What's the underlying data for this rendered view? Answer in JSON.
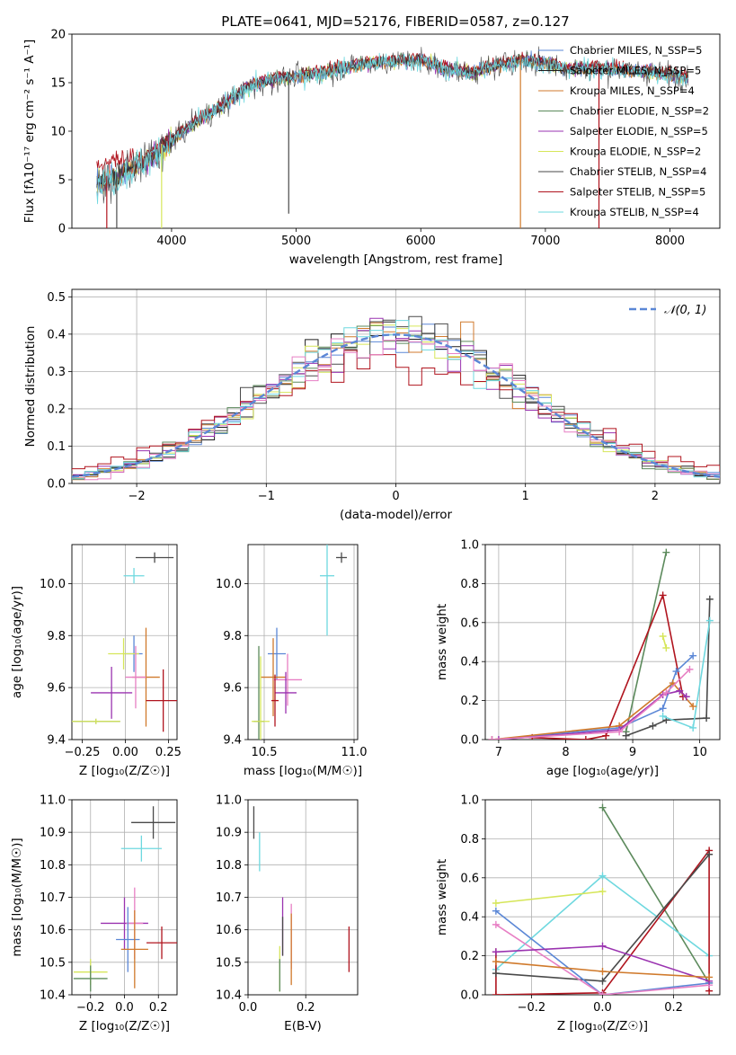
{
  "page_title": "PLATE=0641, MJD=52176, FIBERID=0587, z=0.127",
  "colors": {
    "Chabrier MILES": "#5b87d6",
    "Salpeter MILES": "#1f1f1f",
    "Kroupa MILES": "#d07a2c",
    "Chabrier ELODIE": "#5c8a5c",
    "Salpeter ELODIE": "#9a33b0",
    "Kroupa ELODIE": "#d6e65a",
    "Chabrier STELIB": "#4a4a4a",
    "Salpeter STELIB": "#b0141e",
    "Kroupa STELIB": "#6ed8df",
    "Extra pink": "#e77fc4"
  },
  "chart_data": [
    {
      "id": "spectrum",
      "type": "line",
      "title": "PLATE=0641, MJD=52176, FIBERID=0587, z=0.127",
      "xlabel": "wavelength [Angstrom, rest frame]",
      "ylabel": "Flux [fλ10⁻¹⁷ erg cm⁻² s⁻¹ A⁻¹]",
      "xlim": [
        3200,
        8400
      ],
      "ylim": [
        0,
        20
      ],
      "xticks": [
        4000,
        5000,
        6000,
        7000,
        8000
      ],
      "yticks": [
        0,
        5,
        10,
        15,
        20
      ],
      "legend_position": "top-right",
      "series": [
        {
          "name": "Chabrier MILES, N_SSP=5",
          "color_key": "Chabrier MILES"
        },
        {
          "name": "Salpeter MILES, N_SSP=5",
          "color_key": "Salpeter MILES"
        },
        {
          "name": "Kroupa MILES, N_SSP=4",
          "color_key": "Kroupa MILES"
        },
        {
          "name": "Chabrier ELODIE, N_SSP=2",
          "color_key": "Chabrier ELODIE"
        },
        {
          "name": "Salpeter ELODIE, N_SSP=5",
          "color_key": "Salpeter ELODIE"
        },
        {
          "name": "Kroupa ELODIE, N_SSP=2",
          "color_key": "Kroupa ELODIE"
        },
        {
          "name": "Chabrier STELIB, N_SSP=4",
          "color_key": "Chabrier STELIB"
        },
        {
          "name": "Salpeter STELIB, N_SSP=5",
          "color_key": "Salpeter STELIB"
        },
        {
          "name": "Kroupa STELIB, N_SSP=4",
          "color_key": "Kroupa STELIB"
        }
      ],
      "continuum": {
        "x": [
          3400,
          3600,
          3800,
          4000,
          4200,
          4400,
          4600,
          4800,
          5000,
          5200,
          5400,
          5600,
          5800,
          6000,
          6200,
          6400,
          6600,
          6800,
          7000,
          7200,
          7400,
          7600,
          7800,
          8000,
          8150
        ],
        "y": [
          4.5,
          5.5,
          7.0,
          9.0,
          11.0,
          12.5,
          14.5,
          15.3,
          15.6,
          16.0,
          16.6,
          17.0,
          17.2,
          17.3,
          16.4,
          16.0,
          16.7,
          17.3,
          17.0,
          16.4,
          16.5,
          16.3,
          16.1,
          15.8,
          15.6
        ]
      },
      "spikes": [
        {
          "x": 3480,
          "y": 0,
          "color_key": "Salpeter STELIB"
        },
        {
          "x": 3560,
          "y": 0,
          "color_key": "Chabrier STELIB"
        },
        {
          "x": 3920,
          "y": 0,
          "color_key": "Kroupa ELODIE"
        },
        {
          "x": 4940,
          "y": 1.5,
          "color_key": "Chabrier STELIB"
        },
        {
          "x": 6800,
          "y": 0,
          "color_key": "Kroupa MILES"
        },
        {
          "x": 7430,
          "y": 0,
          "color_key": "Salpeter STELIB"
        }
      ]
    },
    {
      "id": "residuals",
      "type": "line",
      "xlabel": "(data-model)/error",
      "ylabel": "Normed distribution",
      "xlim": [
        -2.5,
        2.5
      ],
      "ylim": [
        0,
        0.52
      ],
      "xticks": [
        -2,
        -1,
        0,
        1,
        2
      ],
      "xtick_labels": [
        "−2",
        "−1",
        "0",
        "1",
        "2"
      ],
      "yticks": [
        0.0,
        0.1,
        0.2,
        0.3,
        0.4,
        0.5
      ],
      "grid": true,
      "legend": "𝒩(0, 1)",
      "legend_position": "top-right"
    },
    {
      "id": "age_vs_Z",
      "type": "scatter",
      "xlabel": "Z [log₁₀(Z/Z☉)]",
      "ylabel": "age  [log₁₀(age/yr)]",
      "xlim": [
        -0.31,
        0.3
      ],
      "ylim": [
        9.4,
        10.15
      ],
      "xticks": [
        -0.25,
        0.0,
        0.25
      ],
      "xtick_labels": [
        "−0.25",
        "0.00",
        "0.25"
      ],
      "yticks": [
        9.4,
        9.6,
        9.8,
        10.0
      ],
      "grid": true,
      "points": [
        {
          "x": 0.17,
          "xerr": 0.11,
          "y": 10.1,
          "yerr": 0.02,
          "color_key": "Chabrier STELIB"
        },
        {
          "x": 0.05,
          "xerr": 0.06,
          "y": 10.03,
          "yerr": 0.03,
          "color_key": "Kroupa STELIB"
        },
        {
          "x": 0.05,
          "xerr": 0.05,
          "y": 9.73,
          "yerr": 0.07,
          "color_key": "Chabrier MILES"
        },
        {
          "x": -0.01,
          "xerr": 0.09,
          "y": 9.73,
          "yerr": 0.06,
          "color_key": "Kroupa ELODIE"
        },
        {
          "x": 0.12,
          "xerr": 0.08,
          "y": 9.64,
          "yerr": 0.19,
          "color_key": "Kroupa MILES"
        },
        {
          "x": 0.06,
          "xerr": 0.06,
          "y": 9.64,
          "yerr": 0.12,
          "color_key": "Extra pink"
        },
        {
          "x": -0.08,
          "xerr": 0.12,
          "y": 9.58,
          "yerr": 0.1,
          "color_key": "Salpeter ELODIE"
        },
        {
          "x": 0.22,
          "xerr": 0.1,
          "y": 9.55,
          "yerr": 0.12,
          "color_key": "Salpeter STELIB"
        },
        {
          "x": -0.17,
          "xerr": 0.14,
          "y": 9.47,
          "yerr": 0.01,
          "color_key": "Chabrier ELODIE"
        },
        {
          "x": -0.17,
          "xerr": 0.14,
          "y": 9.47,
          "yerr": 0.01,
          "color_key": "Kroupa ELODIE"
        }
      ]
    },
    {
      "id": "age_vs_mass",
      "type": "scatter",
      "xlabel": "mass [log₁₀(M/M☉)]",
      "xlim": [
        10.41,
        11.02
      ],
      "ylim": [
        9.4,
        10.15
      ],
      "xticks": [
        10.5,
        11.0
      ],
      "xtick_labels": [
        "10.5",
        "11.0"
      ],
      "yticks": [
        9.4,
        9.6,
        9.8,
        10.0
      ],
      "grid": true,
      "points": [
        {
          "x": 10.93,
          "xerr": 0.03,
          "y": 10.1,
          "yerr": 0.02,
          "color_key": "Chabrier STELIB"
        },
        {
          "x": 10.85,
          "xerr": 0.04,
          "y": 10.03,
          "yerr": 0.23,
          "color_key": "Kroupa STELIB"
        },
        {
          "x": 10.57,
          "xerr": 0.05,
          "y": 9.73,
          "yerr": 0.1,
          "color_key": "Chabrier MILES"
        },
        {
          "x": 10.55,
          "xerr": 0.07,
          "y": 9.64,
          "yerr": 0.15,
          "color_key": "Kroupa MILES"
        },
        {
          "x": 10.63,
          "xerr": 0.08,
          "y": 9.63,
          "yerr": 0.1,
          "color_key": "Extra pink"
        },
        {
          "x": 10.62,
          "xerr": 0.06,
          "y": 9.58,
          "yerr": 0.08,
          "color_key": "Salpeter ELODIE"
        },
        {
          "x": 10.56,
          "xerr": 0.02,
          "y": 9.55,
          "yerr": 0.1,
          "color_key": "Salpeter STELIB"
        },
        {
          "x": 10.47,
          "xerr": 0.03,
          "y": 9.47,
          "yerr": 0.29,
          "color_key": "Chabrier ELODIE"
        },
        {
          "x": 10.48,
          "xerr": 0.05,
          "y": 9.47,
          "yerr": 0.25,
          "color_key": "Kroupa ELODIE"
        }
      ]
    },
    {
      "id": "weight_vs_age",
      "type": "line",
      "xlabel": "age  [log₁₀(age/yr)]",
      "ylabel": "mass weight",
      "xlim": [
        6.8,
        10.3
      ],
      "ylim": [
        0,
        1.0
      ],
      "xticks": [
        7,
        8,
        9,
        10
      ],
      "yticks": [
        0.0,
        0.2,
        0.4,
        0.6,
        0.8,
        1.0
      ],
      "grid": true,
      "series": [
        {
          "color_key": "Chabrier ELODIE",
          "x": [
            8.9,
            9.5
          ],
          "y": [
            0.04,
            0.96
          ]
        },
        {
          "color_key": "Salpeter STELIB",
          "x": [
            7.5,
            8.3,
            8.6,
            9.45,
            9.75
          ],
          "y": [
            0.01,
            0.0,
            0.02,
            0.74,
            0.22
          ]
        },
        {
          "color_key": "Chabrier STELIB",
          "x": [
            8.9,
            9.3,
            9.5,
            10.1,
            10.15
          ],
          "y": [
            0.02,
            0.07,
            0.1,
            0.11,
            0.72
          ]
        },
        {
          "color_key": "Kroupa STELIB",
          "x": [
            9.45,
            9.9,
            10.15
          ],
          "y": [
            0.12,
            0.06,
            0.61
          ]
        },
        {
          "color_key": "Kroupa ELODIE",
          "x": [
            9.45,
            9.5
          ],
          "y": [
            0.53,
            0.47
          ]
        },
        {
          "color_key": "Chabrier MILES",
          "x": [
            6.9,
            8.8,
            9.45,
            9.65,
            9.9
          ],
          "y": [
            0.0,
            0.06,
            0.16,
            0.35,
            0.43
          ]
        },
        {
          "color_key": "Kroupa MILES",
          "x": [
            6.9,
            8.8,
            9.6,
            9.9
          ],
          "y": [
            0.0,
            0.07,
            0.29,
            0.17
          ]
        },
        {
          "color_key": "Salpeter ELODIE",
          "x": [
            7.0,
            8.8,
            9.45,
            9.7,
            9.8
          ],
          "y": [
            0.0,
            0.05,
            0.23,
            0.25,
            0.22
          ]
        },
        {
          "color_key": "Extra pink",
          "x": [
            6.9,
            8.8,
            9.5,
            9.85
          ],
          "y": [
            0.0,
            0.04,
            0.24,
            0.36
          ]
        }
      ]
    },
    {
      "id": "mass_vs_Z",
      "type": "scatter",
      "xlabel": "Z [log₁₀(Z/Z☉)]",
      "ylabel": "mass [log₁₀(M/M☉)]",
      "xlim": [
        -0.31,
        0.31
      ],
      "ylim": [
        10.4,
        11.0
      ],
      "xticks": [
        -0.2,
        0.0,
        0.2
      ],
      "xtick_labels": [
        "−0.2",
        "0.0",
        "0.2"
      ],
      "yticks": [
        10.4,
        10.5,
        10.6,
        10.7,
        10.8,
        10.9,
        11.0
      ],
      "grid": true,
      "points": [
        {
          "x": 0.17,
          "xerr": 0.13,
          "y": 10.93,
          "yerr": 0.05,
          "color_key": "Chabrier STELIB"
        },
        {
          "x": 0.1,
          "xerr": 0.12,
          "y": 10.85,
          "yerr": 0.04,
          "color_key": "Kroupa STELIB"
        },
        {
          "x": 0.0,
          "xerr": 0.14,
          "y": 10.62,
          "yerr": 0.08,
          "color_key": "Salpeter ELODIE"
        },
        {
          "x": 0.06,
          "xerr": 0.05,
          "y": 10.62,
          "yerr": 0.11,
          "color_key": "Extra pink"
        },
        {
          "x": 0.02,
          "xerr": 0.07,
          "y": 10.57,
          "yerr": 0.1,
          "color_key": "Chabrier MILES"
        },
        {
          "x": 0.22,
          "xerr": 0.09,
          "y": 10.56,
          "yerr": 0.05,
          "color_key": "Salpeter STELIB"
        },
        {
          "x": 0.06,
          "xerr": 0.08,
          "y": 10.54,
          "yerr": 0.12,
          "color_key": "Kroupa MILES"
        },
        {
          "x": -0.2,
          "xerr": 0.1,
          "y": 10.47,
          "yerr": 0.04,
          "color_key": "Kroupa ELODIE"
        },
        {
          "x": -0.2,
          "xerr": 0.1,
          "y": 10.45,
          "yerr": 0.04,
          "color_key": "Chabrier ELODIE"
        }
      ]
    },
    {
      "id": "mass_vs_ebv",
      "type": "scatter",
      "xlabel": "E(B-V)",
      "xlim": [
        0,
        0.38
      ],
      "ylim": [
        10.4,
        11.0
      ],
      "xticks": [
        0.0,
        0.2
      ],
      "xtick_labels": [
        "0.0",
        "0.2"
      ],
      "yticks": [
        10.4,
        10.5,
        10.6,
        10.7,
        10.8,
        10.9,
        11.0
      ],
      "grid": true,
      "points": [
        {
          "x": 0.02,
          "xerr": 0.0,
          "y": 10.93,
          "yerr": 0.05,
          "color_key": "Chabrier STELIB"
        },
        {
          "x": 0.04,
          "xerr": 0.0,
          "y": 10.84,
          "yerr": 0.06,
          "color_key": "Kroupa STELIB"
        },
        {
          "x": 0.12,
          "xerr": 0.0,
          "y": 10.61,
          "yerr": 0.09,
          "color_key": "Salpeter ELODIE"
        },
        {
          "x": 0.12,
          "xerr": 0.0,
          "y": 10.58,
          "yerr": 0.06,
          "color_key": "Chabrier STELIB"
        },
        {
          "x": 0.15,
          "xerr": 0.0,
          "y": 10.58,
          "yerr": 0.1,
          "color_key": "Extra pink"
        },
        {
          "x": 0.15,
          "xerr": 0.0,
          "y": 10.54,
          "yerr": 0.11,
          "color_key": "Kroupa MILES"
        },
        {
          "x": 0.35,
          "xerr": 0.0,
          "y": 10.54,
          "yerr": 0.07,
          "color_key": "Salpeter STELIB"
        },
        {
          "x": 0.11,
          "xerr": 0.0,
          "y": 10.48,
          "yerr": 0.07,
          "color_key": "Kroupa ELODIE"
        },
        {
          "x": 0.11,
          "xerr": 0.0,
          "y": 10.46,
          "yerr": 0.05,
          "color_key": "Chabrier ELODIE"
        }
      ]
    },
    {
      "id": "weight_vs_Z",
      "type": "line",
      "xlabel": "Z [log₁₀(Z/Z☉)]",
      "ylabel": "mass weight",
      "xlim": [
        -0.33,
        0.33
      ],
      "ylim": [
        0,
        1.0
      ],
      "xticks": [
        -0.2,
        0.0,
        0.2
      ],
      "xtick_labels": [
        "−0.2",
        "0.0",
        "0.2"
      ],
      "yticks": [
        0.0,
        0.2,
        0.4,
        0.6,
        0.8,
        1.0
      ],
      "grid": true,
      "series": [
        {
          "color_key": "Chabrier ELODIE",
          "x": [
            0.0,
            0.3
          ],
          "y": [
            0.96,
            0.06
          ]
        },
        {
          "color_key": "Kroupa STELIB",
          "x": [
            -0.3,
            0.0,
            0.3
          ],
          "y": [
            0.13,
            0.61,
            0.2
          ]
        },
        {
          "color_key": "Kroupa ELODIE",
          "x": [
            -0.3,
            0.0
          ],
          "y": [
            0.47,
            0.53
          ]
        },
        {
          "color_key": "Salpeter STELIB",
          "x": [
            -0.3,
            -0.3,
            0.0,
            0.3,
            0.3
          ],
          "y": [
            0.22,
            0.0,
            0.01,
            0.74,
            0.02
          ]
        },
        {
          "color_key": "Chabrier STELIB",
          "x": [
            -0.3,
            0.0,
            0.3
          ],
          "y": [
            0.11,
            0.07,
            0.72
          ]
        },
        {
          "color_key": "Chabrier MILES",
          "x": [
            -0.3,
            0.0,
            0.3
          ],
          "y": [
            0.43,
            0.0,
            0.06
          ]
        },
        {
          "color_key": "Extra pink",
          "x": [
            -0.3,
            0.0,
            0.3
          ],
          "y": [
            0.36,
            0.0,
            0.05
          ]
        },
        {
          "color_key": "Salpeter ELODIE",
          "x": [
            -0.3,
            0.0,
            0.3
          ],
          "y": [
            0.22,
            0.25,
            0.07
          ]
        },
        {
          "color_key": "Kroupa MILES",
          "x": [
            -0.3,
            0.0,
            0.3
          ],
          "y": [
            0.17,
            0.12,
            0.09
          ]
        }
      ]
    }
  ]
}
